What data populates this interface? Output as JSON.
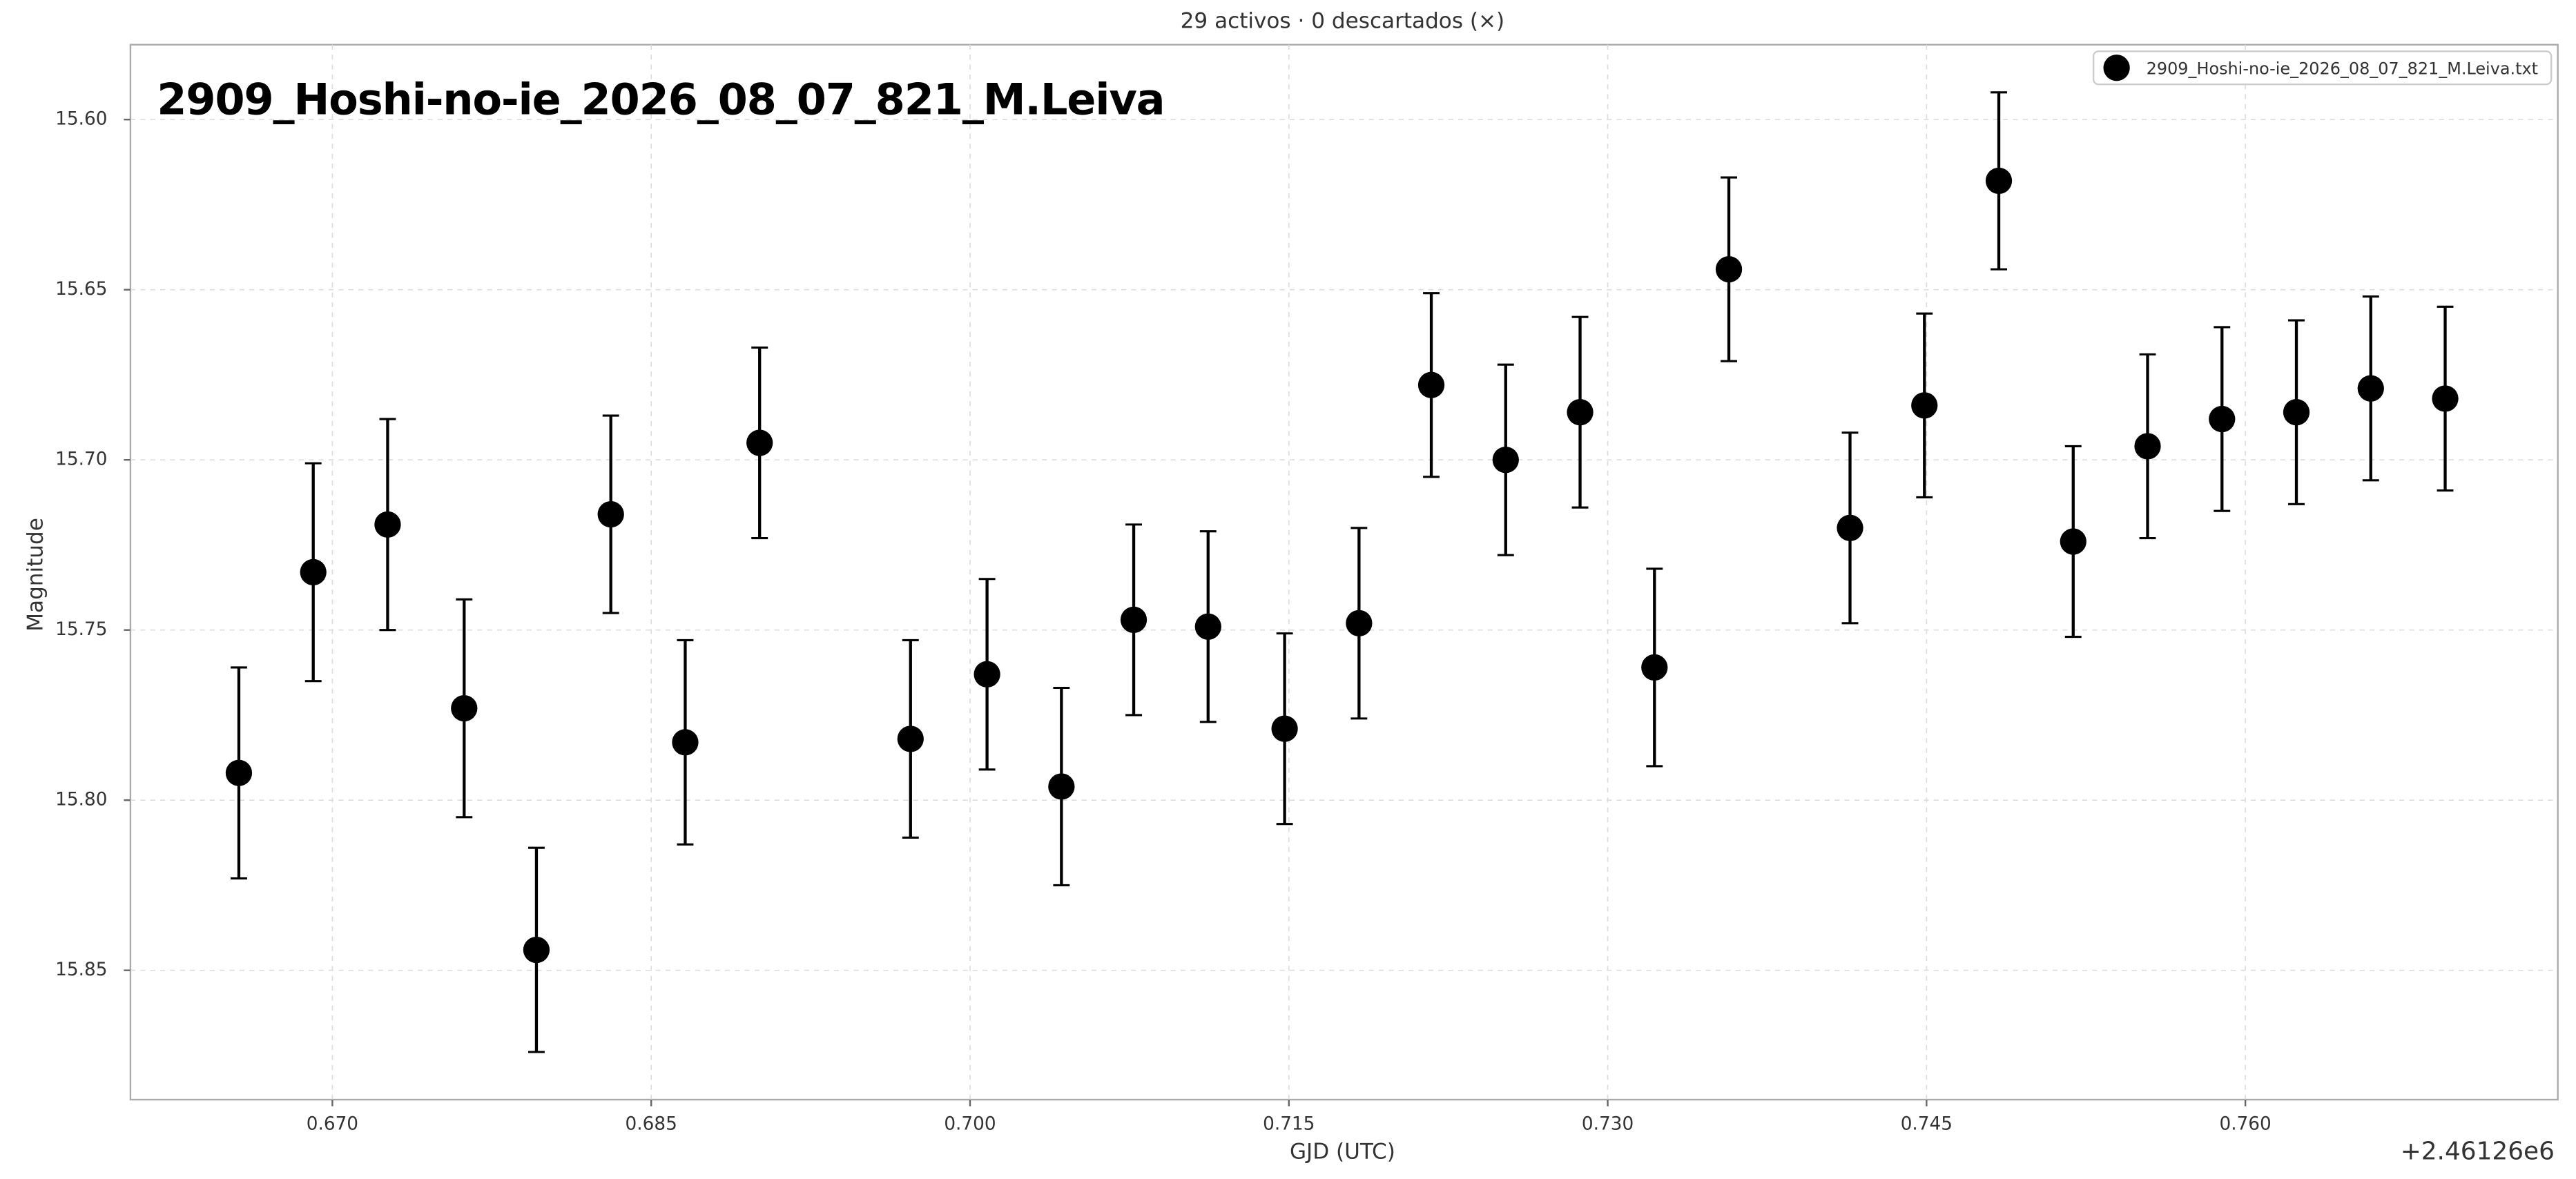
{
  "chart_data": {
    "type": "scatter",
    "window_title": "29 activos · 0 descartados (×)",
    "title": "2909_Hoshi-no-ie_2026_08_07_821_M.Leiva",
    "x_label": "GJD (UTC)",
    "y_label": "Magnitude",
    "x_offset_label": "+2.46126e6",
    "x": [
      0.6656,
      0.6691,
      0.6726,
      0.6762,
      0.6796,
      0.6831,
      0.6866,
      0.6901,
      0.6972,
      0.7008,
      0.7043,
      0.7077,
      0.7112,
      0.7148,
      0.7183,
      0.7217,
      0.7252,
      0.7287,
      0.7322,
      0.7357,
      0.7414,
      0.7449,
      0.7484,
      0.7519,
      0.7554,
      0.7589,
      0.7624,
      0.7659,
      0.7694
    ],
    "series": [
      {
        "name": "2909_Hoshi-no-ie_2026_08_07_821_M.Leiva.txt",
        "color": "#000000",
        "values": [
          15.792,
          15.733,
          15.719,
          15.773,
          15.844,
          15.716,
          15.783,
          15.695,
          15.782,
          15.763,
          15.796,
          15.747,
          15.749,
          15.779,
          15.748,
          15.678,
          15.7,
          15.686,
          15.761,
          15.644,
          15.72,
          15.684,
          15.618,
          15.724,
          15.696,
          15.688,
          15.686,
          15.679,
          15.682
        ],
        "errors": [
          0.031,
          0.032,
          0.031,
          0.032,
          0.03,
          0.029,
          0.03,
          0.028,
          0.029,
          0.028,
          0.029,
          0.028,
          0.028,
          0.028,
          0.028,
          0.027,
          0.028,
          0.028,
          0.029,
          0.027,
          0.028,
          0.027,
          0.026,
          0.028,
          0.027,
          0.027,
          0.027,
          0.027,
          0.027
        ]
      }
    ],
    "xlim": [
      0.6605,
      0.7747
    ],
    "ylim": [
      15.888,
      15.578
    ],
    "xticks": [
      {
        "value": 0.67,
        "label": "0.670"
      },
      0.685,
      {
        "value": 0.7,
        "label": "0.700"
      },
      0.715,
      {
        "value": 0.73,
        "label": "0.730"
      },
      0.745,
      {
        "value": 0.76,
        "label": "0.760"
      }
    ],
    "yticks": [
      {
        "value": 15.6,
        "label": "15.60"
      },
      15.65,
      {
        "value": 15.7,
        "label": "15.70"
      },
      15.75,
      {
        "value": 15.8,
        "label": "15.80"
      },
      15.85
    ],
    "grid": true,
    "legend": "upper right"
  }
}
